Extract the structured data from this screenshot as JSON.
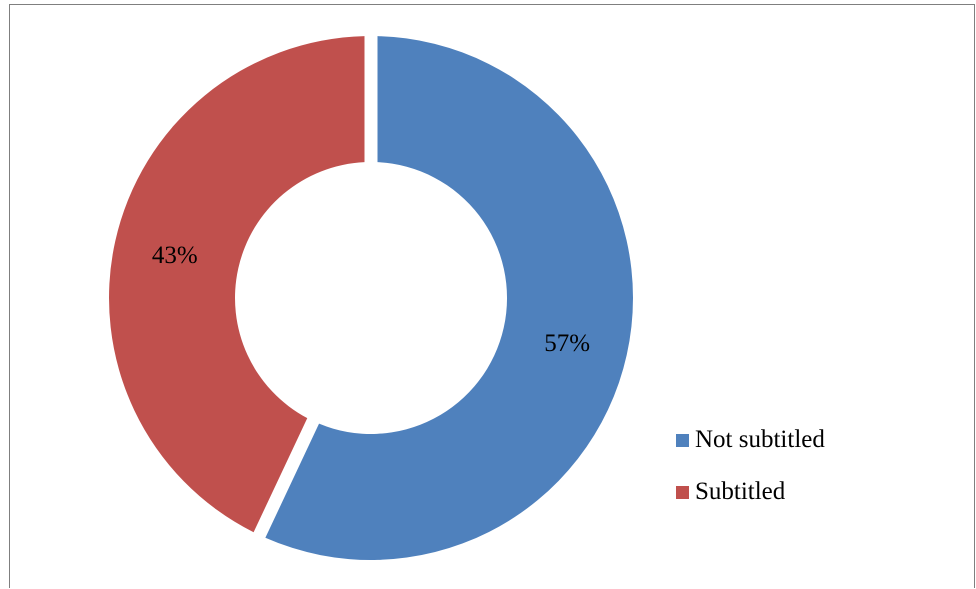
{
  "chart_data": {
    "type": "pie",
    "variant": "doughnut",
    "categories": [
      "Not subtitled",
      "Subtitled"
    ],
    "values": [
      57,
      43
    ],
    "data_labels": [
      "57%",
      "43%"
    ],
    "colors": [
      "#4F81BD",
      "#C0504D"
    ],
    "title": "",
    "legend_position": "right",
    "legend": [
      {
        "label": "Not subtitled",
        "color": "#4F81BD"
      },
      {
        "label": "Subtitled",
        "color": "#C0504D"
      }
    ]
  }
}
